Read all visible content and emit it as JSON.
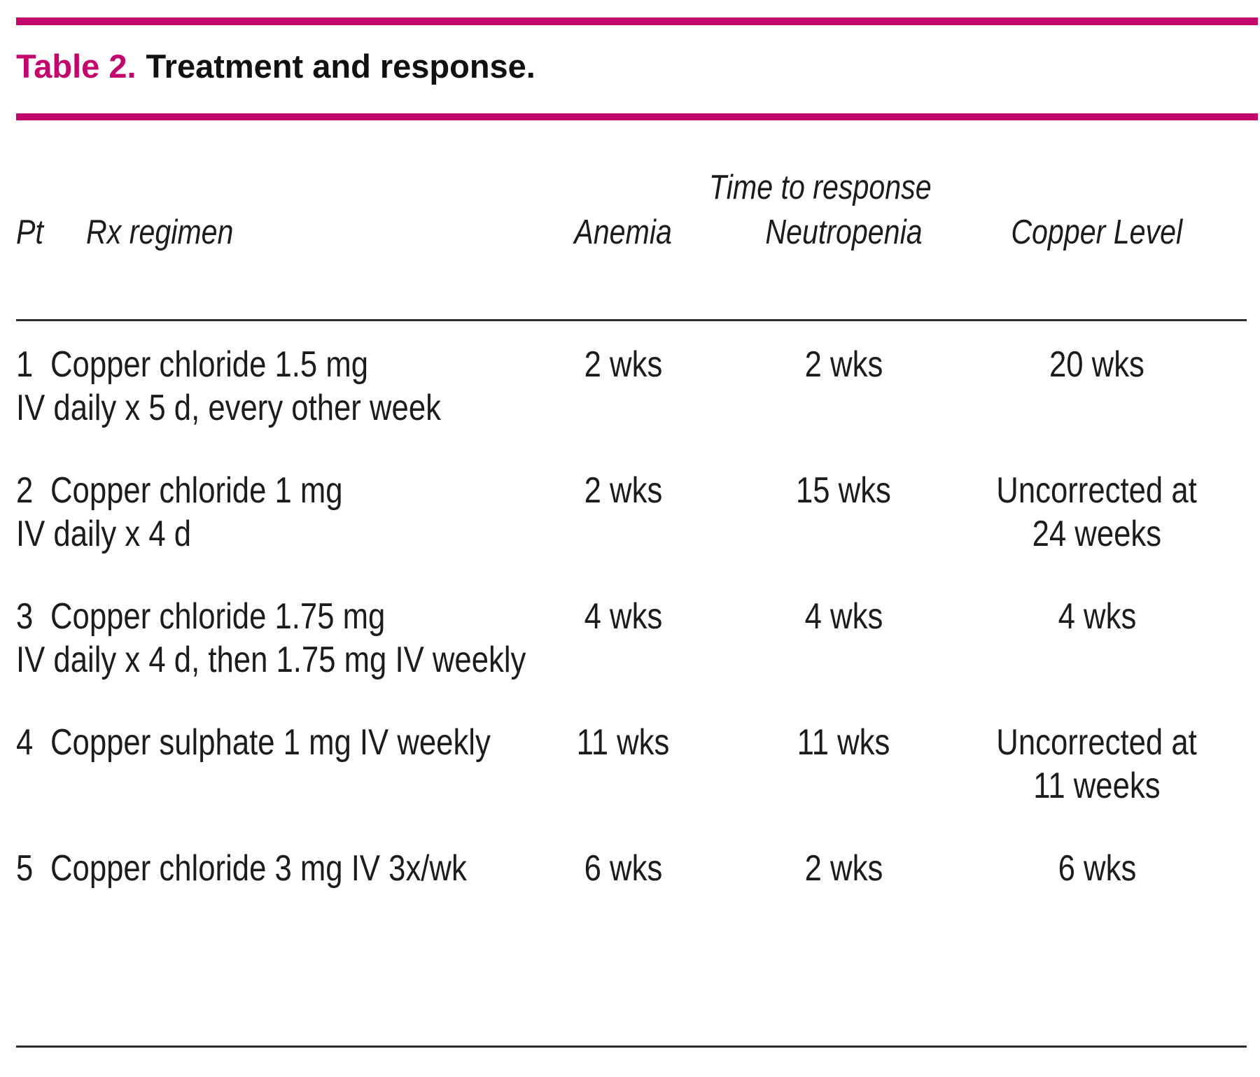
{
  "accent_color": "#c2066b",
  "title": {
    "label": "Table 2.",
    "text": "Treatment and response."
  },
  "table": {
    "group_header": "Time to response",
    "columns": {
      "pt": "Pt",
      "regimen": "Rx regimen",
      "anemia": "Anemia",
      "neutropenia": "Neutropenia",
      "copper": "Copper Level"
    },
    "rows": [
      {
        "pt": "1",
        "regimen_line1": "Copper chloride 1.5 mg",
        "regimen_line2": "IV daily x 5 d, every other week",
        "anemia": "2 wks",
        "neutropenia": "2 wks",
        "copper_line1": "20 wks",
        "copper_line2": ""
      },
      {
        "pt": "2",
        "regimen_line1": "Copper chloride 1 mg",
        "regimen_line2": "IV daily x 4 d",
        "anemia": "2 wks",
        "neutropenia": "15 wks",
        "copper_line1": "Uncorrected at",
        "copper_line2": "24 weeks"
      },
      {
        "pt": "3",
        "regimen_line1": "Copper chloride 1.75 mg",
        "regimen_line2": "IV daily x 4 d, then 1.75 mg IV weekly",
        "anemia": "4 wks",
        "neutropenia": "4 wks",
        "copper_line1": "4 wks",
        "copper_line2": ""
      },
      {
        "pt": "4",
        "regimen_line1": "Copper sulphate 1 mg IV weekly",
        "regimen_line2": "",
        "anemia": "11 wks",
        "neutropenia": "11 wks",
        "copper_line1": "Uncorrected at",
        "copper_line2": "11 weeks"
      },
      {
        "pt": "5",
        "regimen_line1": "Copper chloride 3 mg IV 3x/wk",
        "regimen_line2": "",
        "anemia": "6 wks",
        "neutropenia": "2 wks",
        "copper_line1": "6 wks",
        "copper_line2": ""
      }
    ]
  }
}
